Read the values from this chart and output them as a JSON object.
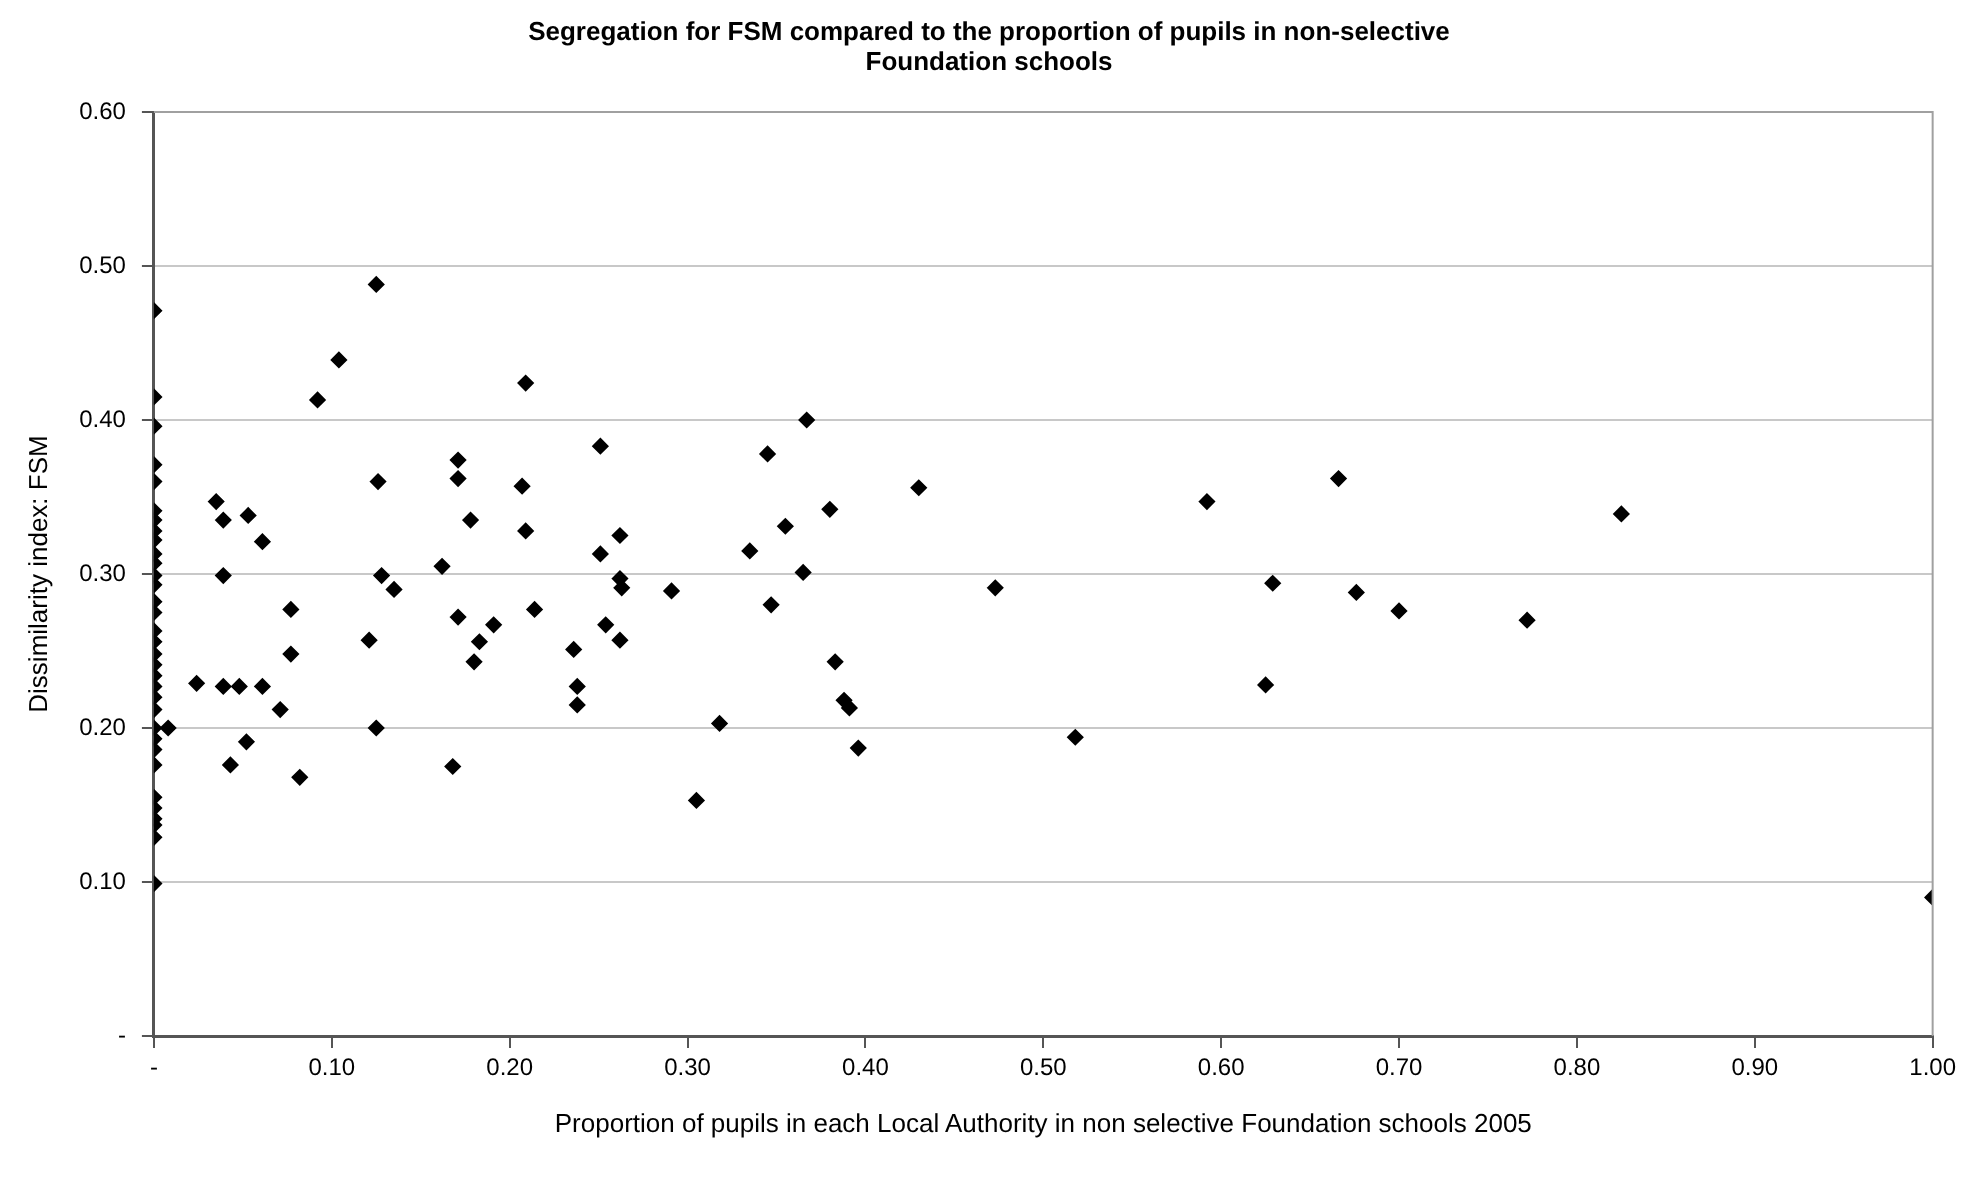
{
  "chart_data": {
    "type": "scatter",
    "title": "Segregation for FSM compared to the proportion of pupils in non-selective Foundation schools",
    "xlabel": "Proportion of pupils in each Local Authority in non selective Foundation schools 2005",
    "ylabel": "Dissimilarity index: FSM",
    "marker": "diamond",
    "grid": "y",
    "legend": false,
    "xlim": [
      0,
      1
    ],
    "ylim": [
      0,
      0.6
    ],
    "xticks": [
      {
        "value": 0,
        "label": "-"
      },
      {
        "value": 0.1,
        "label": "0.10"
      },
      {
        "value": 0.2,
        "label": "0.20"
      },
      {
        "value": 0.3,
        "label": "0.30"
      },
      {
        "value": 0.4,
        "label": "0.40"
      },
      {
        "value": 0.5,
        "label": "0.50"
      },
      {
        "value": 0.6,
        "label": "0.60"
      },
      {
        "value": 0.7,
        "label": "0.70"
      },
      {
        "value": 0.8,
        "label": "0.80"
      },
      {
        "value": 0.9,
        "label": "0.90"
      },
      {
        "value": 1,
        "label": "1.00"
      }
    ],
    "yticks": [
      {
        "value": 0,
        "label": "-"
      },
      {
        "value": 0.1,
        "label": "0.10"
      },
      {
        "value": 0.2,
        "label": "0.20"
      },
      {
        "value": 0.3,
        "label": "0.30"
      },
      {
        "value": 0.4,
        "label": "0.40"
      },
      {
        "value": 0.5,
        "label": "0.50"
      },
      {
        "value": 0.6,
        "label": "0.60"
      }
    ],
    "series": [
      {
        "color": "#000000",
        "x": [
          0,
          0,
          0,
          0,
          0,
          0,
          0,
          0,
          0,
          0,
          0,
          0,
          0,
          0,
          0,
          0,
          0,
          0,
          0,
          0,
          0,
          0,
          0,
          0,
          0,
          0,
          0,
          0,
          0,
          0,
          0,
          0,
          0,
          0.008,
          0.024,
          0.035,
          0.039,
          0.039,
          0.039,
          0.043,
          0.048,
          0.052,
          0.053,
          0.061,
          0.061,
          0.071,
          0.077,
          0.077,
          0.082,
          0.092,
          0.104,
          0.121,
          0.125,
          0.125,
          0.126,
          0.128,
          0.135,
          0.162,
          0.168,
          0.171,
          0.171,
          0.171,
          0.178,
          0.18,
          0.183,
          0.191,
          0.207,
          0.209,
          0.209,
          0.214,
          0.236,
          0.238,
          0.238,
          0.251,
          0.251,
          0.262,
          0.262,
          0.263,
          0.254,
          0.262,
          0.291,
          0.305,
          0.318,
          0.335,
          0.345,
          0.347,
          0.355,
          0.365,
          0.367,
          0.38,
          0.383,
          0.388,
          0.391,
          0.396,
          0.43,
          0.473,
          0.518,
          0.592,
          0.625,
          0.629,
          0.666,
          0.676,
          0.7,
          0.772,
          0.825,
          1
        ],
        "values": [
          0.471,
          0.415,
          0.396,
          0.371,
          0.36,
          0.341,
          0.335,
          0.328,
          0.322,
          0.313,
          0.307,
          0.299,
          0.293,
          0.282,
          0.275,
          0.263,
          0.256,
          0.248,
          0.241,
          0.234,
          0.227,
          0.22,
          0.212,
          0.2,
          0.193,
          0.186,
          0.176,
          0.155,
          0.148,
          0.141,
          0.137,
          0.129,
          0.099,
          0.2,
          0.229,
          0.347,
          0.335,
          0.299,
          0.227,
          0.176,
          0.227,
          0.191,
          0.338,
          0.321,
          0.227,
          0.212,
          0.277,
          0.248,
          0.168,
          0.413,
          0.439,
          0.257,
          0.488,
          0.2,
          0.36,
          0.299,
          0.29,
          0.305,
          0.175,
          0.374,
          0.362,
          0.272,
          0.335,
          0.243,
          0.256,
          0.267,
          0.357,
          0.424,
          0.328,
          0.277,
          0.251,
          0.227,
          0.215,
          0.383,
          0.313,
          0.325,
          0.297,
          0.291,
          0.267,
          0.257,
          0.289,
          0.153,
          0.203,
          0.315,
          0.378,
          0.28,
          0.331,
          0.301,
          0.4,
          0.342,
          0.243,
          0.218,
          0.213,
          0.187,
          0.356,
          0.291,
          0.194,
          0.347,
          0.228,
          0.294,
          0.362,
          0.288,
          0.276,
          0.27,
          0.339,
          0.09
        ]
      }
    ]
  }
}
